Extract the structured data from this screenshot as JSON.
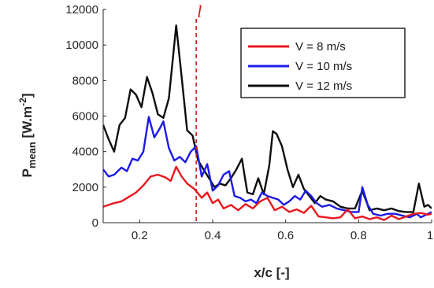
{
  "chart_data": {
    "type": "line",
    "title": "",
    "ylabel_main": "P",
    "ylabel_sub": "mean",
    "ylabel_unit_pre": " [W.m",
    "ylabel_unit_sup": "-2",
    "ylabel_unit_post": "]",
    "xlabel": "x/c [-]",
    "xlim": [
      0.1,
      1.0
    ],
    "ylim": [
      0,
      12000
    ],
    "xticks": [
      0.2,
      0.4,
      0.6,
      0.8,
      1.0
    ],
    "xtick_labels": [
      "0.2",
      "0.4",
      "0.6",
      "0.8",
      "1"
    ],
    "yticks": [
      0,
      2000,
      4000,
      6000,
      8000,
      10000,
      12000
    ],
    "ytick_labels": [
      "0",
      "2000",
      "4000",
      "6000",
      "8000",
      "10000",
      "12000"
    ],
    "grid": false,
    "legend_position": "top-right",
    "annotation": {
      "x": 0.355,
      "label": "l",
      "color": "#d6191b",
      "style": "dashed vertical line"
    },
    "series": [
      {
        "name": "V = 8 m/s",
        "color": "#e8181e",
        "points": [
          [
            0.1,
            900
          ],
          [
            0.115,
            1000
          ],
          [
            0.13,
            1100
          ],
          [
            0.15,
            1200
          ],
          [
            0.17,
            1450
          ],
          [
            0.19,
            1700
          ],
          [
            0.21,
            2100
          ],
          [
            0.23,
            2600
          ],
          [
            0.25,
            2700
          ],
          [
            0.27,
            2550
          ],
          [
            0.285,
            2350
          ],
          [
            0.3,
            3150
          ],
          [
            0.315,
            2600
          ],
          [
            0.33,
            2200
          ],
          [
            0.35,
            1900
          ],
          [
            0.37,
            1400
          ],
          [
            0.385,
            1700
          ],
          [
            0.4,
            1100
          ],
          [
            0.415,
            1300
          ],
          [
            0.43,
            800
          ],
          [
            0.45,
            1000
          ],
          [
            0.47,
            700
          ],
          [
            0.49,
            1050
          ],
          [
            0.51,
            800
          ],
          [
            0.53,
            1200
          ],
          [
            0.55,
            1400
          ],
          [
            0.57,
            700
          ],
          [
            0.59,
            900
          ],
          [
            0.61,
            600
          ],
          [
            0.63,
            750
          ],
          [
            0.65,
            550
          ],
          [
            0.67,
            950
          ],
          [
            0.69,
            350
          ],
          [
            0.71,
            300
          ],
          [
            0.73,
            250
          ],
          [
            0.75,
            300
          ],
          [
            0.77,
            750
          ],
          [
            0.79,
            250
          ],
          [
            0.81,
            350
          ],
          [
            0.83,
            200
          ],
          [
            0.85,
            300
          ],
          [
            0.87,
            150
          ],
          [
            0.89,
            400
          ],
          [
            0.91,
            200
          ],
          [
            0.93,
            350
          ],
          [
            0.95,
            500
          ],
          [
            0.97,
            550
          ],
          [
            0.99,
            450
          ],
          [
            1.0,
            500
          ]
        ]
      },
      {
        "name": "V = 10 m/s",
        "color": "#1a1ae6",
        "points": [
          [
            0.1,
            3000
          ],
          [
            0.115,
            2600
          ],
          [
            0.13,
            2700
          ],
          [
            0.15,
            3100
          ],
          [
            0.165,
            2900
          ],
          [
            0.18,
            3600
          ],
          [
            0.195,
            3500
          ],
          [
            0.21,
            4000
          ],
          [
            0.225,
            5950
          ],
          [
            0.24,
            4800
          ],
          [
            0.255,
            5300
          ],
          [
            0.265,
            5700
          ],
          [
            0.28,
            4200
          ],
          [
            0.295,
            3500
          ],
          [
            0.31,
            3700
          ],
          [
            0.325,
            3400
          ],
          [
            0.34,
            4000
          ],
          [
            0.355,
            4300
          ],
          [
            0.37,
            2600
          ],
          [
            0.385,
            3300
          ],
          [
            0.4,
            1800
          ],
          [
            0.415,
            2100
          ],
          [
            0.43,
            2700
          ],
          [
            0.445,
            2900
          ],
          [
            0.46,
            1500
          ],
          [
            0.475,
            1400
          ],
          [
            0.49,
            1200
          ],
          [
            0.505,
            1300
          ],
          [
            0.52,
            1100
          ],
          [
            0.535,
            1700
          ],
          [
            0.55,
            1500
          ],
          [
            0.565,
            1400
          ],
          [
            0.58,
            1300
          ],
          [
            0.595,
            1000
          ],
          [
            0.61,
            1200
          ],
          [
            0.625,
            1500
          ],
          [
            0.64,
            1300
          ],
          [
            0.655,
            1800
          ],
          [
            0.67,
            1500
          ],
          [
            0.685,
            1100
          ],
          [
            0.7,
            900
          ],
          [
            0.72,
            1000
          ],
          [
            0.74,
            800
          ],
          [
            0.76,
            700
          ],
          [
            0.78,
            600
          ],
          [
            0.8,
            600
          ],
          [
            0.81,
            2000
          ],
          [
            0.825,
            1000
          ],
          [
            0.84,
            500
          ],
          [
            0.86,
            400
          ],
          [
            0.88,
            500
          ],
          [
            0.9,
            500
          ],
          [
            0.92,
            400
          ],
          [
            0.94,
            300
          ],
          [
            0.96,
            500
          ],
          [
            0.97,
            300
          ],
          [
            0.99,
            500
          ],
          [
            1.0,
            600
          ]
        ]
      },
      {
        "name": "V = 12 m/s",
        "color": "#0d0d0d",
        "points": [
          [
            0.1,
            5500
          ],
          [
            0.115,
            4700
          ],
          [
            0.13,
            4000
          ],
          [
            0.145,
            5500
          ],
          [
            0.16,
            5900
          ],
          [
            0.175,
            7500
          ],
          [
            0.19,
            7200
          ],
          [
            0.205,
            6500
          ],
          [
            0.22,
            8200
          ],
          [
            0.235,
            7300
          ],
          [
            0.25,
            6100
          ],
          [
            0.265,
            5900
          ],
          [
            0.28,
            7000
          ],
          [
            0.3,
            11100
          ],
          [
            0.315,
            8200
          ],
          [
            0.33,
            5200
          ],
          [
            0.345,
            4900
          ],
          [
            0.36,
            3500
          ],
          [
            0.375,
            3000
          ],
          [
            0.39,
            2500
          ],
          [
            0.405,
            2000
          ],
          [
            0.42,
            2200
          ],
          [
            0.435,
            2100
          ],
          [
            0.45,
            2500
          ],
          [
            0.465,
            3000
          ],
          [
            0.48,
            3600
          ],
          [
            0.495,
            1700
          ],
          [
            0.51,
            1600
          ],
          [
            0.525,
            2500
          ],
          [
            0.54,
            1600
          ],
          [
            0.555,
            3200
          ],
          [
            0.565,
            5150
          ],
          [
            0.575,
            5000
          ],
          [
            0.59,
            4300
          ],
          [
            0.605,
            3000
          ],
          [
            0.62,
            2000
          ],
          [
            0.635,
            2700
          ],
          [
            0.65,
            1900
          ],
          [
            0.665,
            1500
          ],
          [
            0.68,
            1100
          ],
          [
            0.695,
            1500
          ],
          [
            0.71,
            1300
          ],
          [
            0.73,
            1200
          ],
          [
            0.75,
            900
          ],
          [
            0.77,
            800
          ],
          [
            0.79,
            800
          ],
          [
            0.81,
            1800
          ],
          [
            0.83,
            700
          ],
          [
            0.85,
            800
          ],
          [
            0.87,
            700
          ],
          [
            0.89,
            800
          ],
          [
            0.91,
            650
          ],
          [
            0.93,
            600
          ],
          [
            0.95,
            600
          ],
          [
            0.965,
            2200
          ],
          [
            0.98,
            900
          ],
          [
            0.99,
            1000
          ],
          [
            1.0,
            800
          ]
        ]
      }
    ]
  }
}
